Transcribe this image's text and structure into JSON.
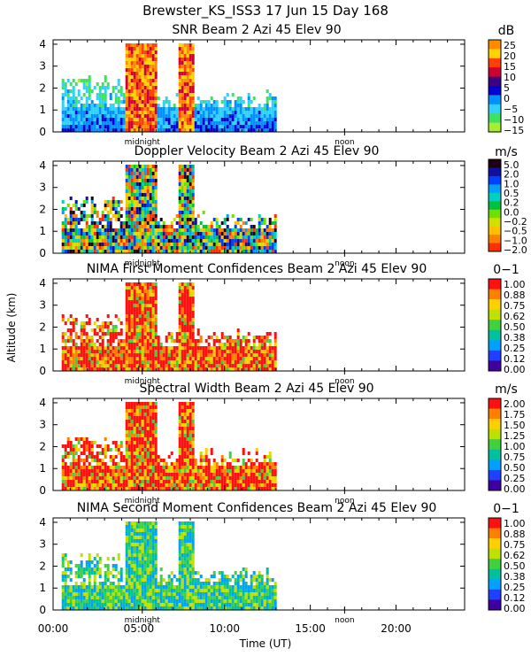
{
  "header": {
    "title": "Brewster_KS_ISS3  17 Jun 15 Day 168"
  },
  "axes": {
    "ylabel": "Altitude (km)",
    "xlabel": "Time (UT)",
    "x_ticks": [
      "00:00",
      "05:00",
      "10:00",
      "15:00",
      "20:00"
    ],
    "y_ticks": [
      "0",
      "1",
      "2",
      "3",
      "4"
    ],
    "midnight_label": "midnight",
    "noon_label": "noon"
  },
  "chart_data": [
    {
      "type": "heatmap",
      "title": "SNR Beam 2 Azi  45 Elev 90",
      "unit": "dB",
      "xlim": [
        0,
        24
      ],
      "ylim": [
        0,
        4.2
      ],
      "data_extent_hours": [
        0.5,
        13
      ],
      "colorbar_labels": [
        "25",
        "20",
        "15",
        "10",
        "5",
        "0",
        "−5",
        "−10",
        "−15"
      ],
      "colorbar_colors": [
        "#ff8c00",
        "#ffd200",
        "#ff4000",
        "#d00030",
        "#3c0080",
        "#0000d0",
        "#0090ff",
        "#30d0ff",
        "#40e060",
        "#a8ee30"
      ]
    },
    {
      "type": "heatmap",
      "title": "Doppler Velocity Beam 2 Azi  45 Elev 90",
      "unit": "m/s",
      "xlim": [
        0,
        24
      ],
      "ylim": [
        0,
        4.2
      ],
      "data_extent_hours": [
        0.5,
        13
      ],
      "colorbar_labels": [
        "5.0",
        "2.0",
        "1.0",
        "0.5",
        "0.2",
        "0.0",
        "−0.2",
        "−0.5",
        "−1.0",
        "−2.0"
      ],
      "colorbar_colors": [
        "#200010",
        "#1010a0",
        "#0040ff",
        "#00a0ff",
        "#00d0c0",
        "#00c040",
        "#70e000",
        "#d0e000",
        "#ffc000",
        "#ff8000",
        "#ff3000"
      ]
    },
    {
      "type": "heatmap",
      "title": "NIMA First Moment Confidences Beam 2 Azi  45 Elev 90",
      "unit": "0−1",
      "xlim": [
        0,
        24
      ],
      "ylim": [
        0,
        4.2
      ],
      "data_extent_hours": [
        0.5,
        13
      ],
      "colorbar_labels": [
        "1.00",
        "0.88",
        "0.75",
        "0.62",
        "0.50",
        "0.38",
        "0.25",
        "0.12",
        "0.00"
      ],
      "colorbar_colors": [
        "#ff1010",
        "#ff8000",
        "#ffd000",
        "#c0e000",
        "#40d040",
        "#00c0a0",
        "#00a0ff",
        "#2040ff",
        "#4000a0"
      ]
    },
    {
      "type": "heatmap",
      "title": "Spectral Width Beam 2 Azi  45 Elev 90",
      "unit": "m/s",
      "xlim": [
        0,
        24
      ],
      "ylim": [
        0,
        4.2
      ],
      "data_extent_hours": [
        0.5,
        13
      ],
      "colorbar_labels": [
        "2.00",
        "1.75",
        "1.50",
        "1.25",
        "1.00",
        "0.75",
        "0.50",
        "0.25",
        "0.00"
      ],
      "colorbar_colors": [
        "#ff1010",
        "#ff8000",
        "#ffd000",
        "#c0e000",
        "#40d040",
        "#00c0a0",
        "#00a0ff",
        "#2040ff",
        "#4000a0"
      ]
    },
    {
      "type": "heatmap",
      "title": "NIMA Second Moment Confidences Beam 2 Azi  45 Elev 90",
      "unit": "0−1",
      "xlim": [
        0,
        24
      ],
      "ylim": [
        0,
        4.2
      ],
      "data_extent_hours": [
        0.5,
        13
      ],
      "colorbar_labels": [
        "1.00",
        "0.88",
        "0.75",
        "0.62",
        "0.50",
        "0.38",
        "0.25",
        "0.12",
        "0.00"
      ],
      "colorbar_colors": [
        "#ff1010",
        "#ff8000",
        "#ffd000",
        "#c0e000",
        "#40d040",
        "#00c0a0",
        "#00a0ff",
        "#2040ff",
        "#4000a0"
      ]
    }
  ]
}
